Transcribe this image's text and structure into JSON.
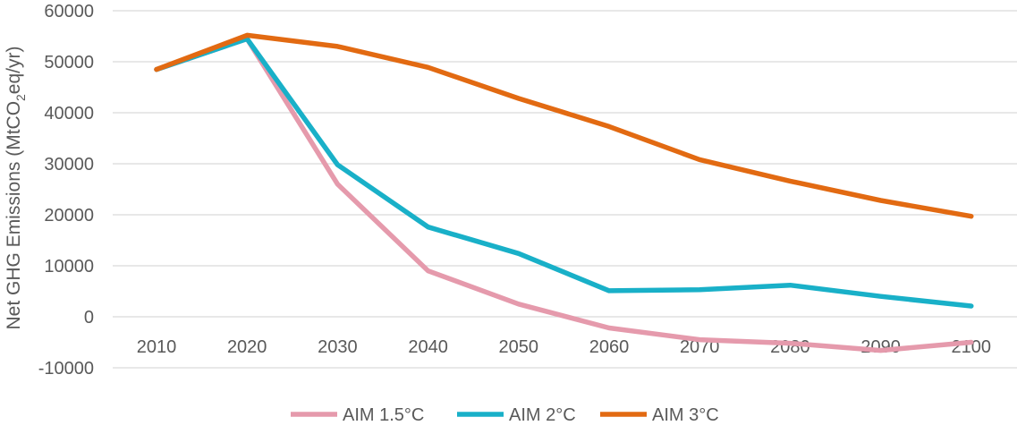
{
  "chart_data": {
    "type": "line",
    "title": "",
    "xlabel": "",
    "ylabel_prefix": "Net GHG Emissions (MtCO",
    "ylabel_sub": "2",
    "ylabel_suffix": "eq/yr)",
    "ylim": [
      -10000,
      60000
    ],
    "yticks": [
      -10000,
      0,
      10000,
      20000,
      30000,
      40000,
      50000,
      60000
    ],
    "x": [
      2010,
      2020,
      2030,
      2040,
      2050,
      2060,
      2070,
      2080,
      2090,
      2100
    ],
    "grid": true,
    "legend_position": "bottom",
    "series": [
      {
        "name": "AIM 1.5°C",
        "color": "#E59AAC",
        "values": [
          48500,
          54500,
          26000,
          9000,
          2500,
          -2200,
          -4500,
          -5200,
          -6600,
          -5000
        ]
      },
      {
        "name": "AIM 2°C",
        "color": "#19B0C8",
        "values": [
          48500,
          54500,
          29800,
          17600,
          12400,
          5100,
          5300,
          6200,
          4000,
          2100
        ]
      },
      {
        "name": "AIM 3°C",
        "color": "#E26A12",
        "values": [
          48500,
          55200,
          53000,
          48900,
          42800,
          37300,
          30800,
          26600,
          22800,
          19700
        ]
      }
    ]
  }
}
